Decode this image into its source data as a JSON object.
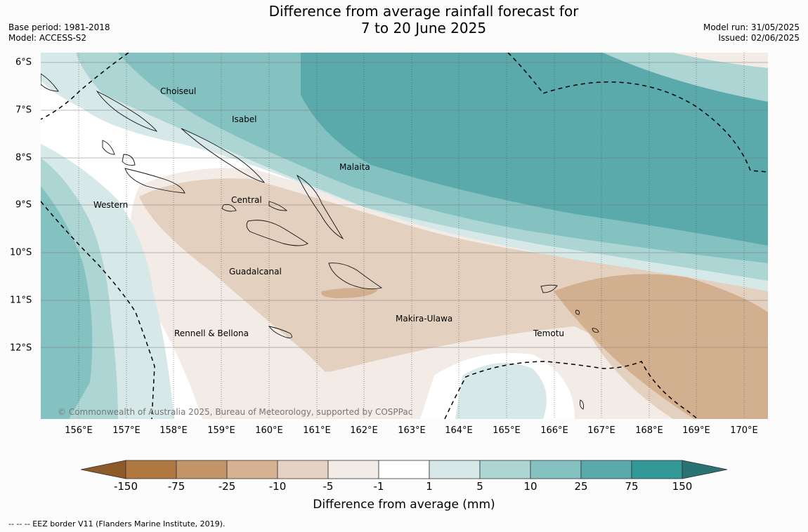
{
  "title_line1": "Difference from average rainfall forecast for",
  "title_line2": "7 to 20 June 2025",
  "base_period": "Base period: 1981-2018",
  "model": "Model: ACCESS-S2",
  "model_run": "Model run: 31/05/2025",
  "issued": "Issued: 02/06/2025",
  "lat_labels": [
    "6°S",
    "7°S",
    "8°S",
    "9°S",
    "10°S",
    "11°S",
    "12°S"
  ],
  "lon_labels": [
    "156°E",
    "157°E",
    "158°E",
    "159°E",
    "160°E",
    "161°E",
    "162°E",
    "163°E",
    "164°E",
    "165°E",
    "166°E",
    "167°E",
    "168°E",
    "169°E",
    "170°E"
  ],
  "places": {
    "choiseul": "Choiseul",
    "isabel": "Isabel",
    "malaita": "Malaita",
    "western": "Western",
    "central": "Central",
    "guadalcanal": "Guadalcanal",
    "makira": "Makira-Ulawa",
    "rennell": "Rennell & Bellona",
    "temotu": "Temotu"
  },
  "copyright": "© Commonwealth of Australia 2025, Bureau of Meteorology, supported by COSPPac",
  "colorbar": {
    "labels": [
      "-150",
      "-75",
      "-25",
      "-10",
      "-5",
      "-1",
      "1",
      "5",
      "10",
      "25",
      "75",
      "150"
    ],
    "colors": [
      "#8e5a2a",
      "#b07840",
      "#c39468",
      "#d6b293",
      "#e5d2c2",
      "#f3ebe6",
      "#ffffff",
      "#d6e9e8",
      "#acd5d4",
      "#84c2c1",
      "#5aaaab",
      "#339898",
      "#2b7373"
    ],
    "title": "Difference from average (mm)"
  },
  "footer": "--  --  -- EEZ border V11 (Flanders Marine Institute, 2019)."
}
